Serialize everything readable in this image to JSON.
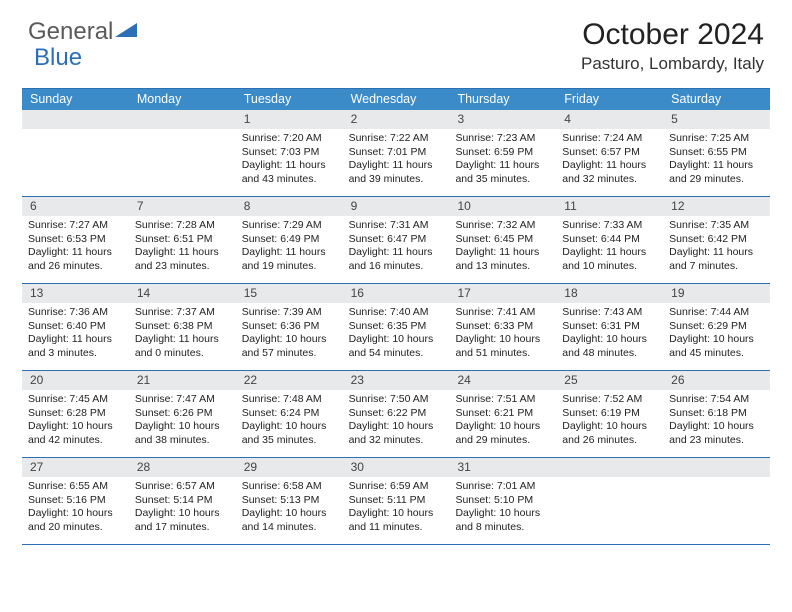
{
  "logo": {
    "text1": "General",
    "text2": "Blue"
  },
  "title": "October 2024",
  "location": "Pasturo, Lombardy, Italy",
  "colors": {
    "header_bg": "#3b8bc9",
    "border": "#2d6fb5",
    "daynum_bg": "#e8e9ea",
    "logo_gray": "#5a5a5a",
    "logo_blue": "#2d6fb5"
  },
  "dow": [
    "Sunday",
    "Monday",
    "Tuesday",
    "Wednesday",
    "Thursday",
    "Friday",
    "Saturday"
  ],
  "weeks": [
    [
      null,
      null,
      {
        "n": "1",
        "sr": "7:20 AM",
        "ss": "7:03 PM",
        "dl": "11 hours and 43 minutes."
      },
      {
        "n": "2",
        "sr": "7:22 AM",
        "ss": "7:01 PM",
        "dl": "11 hours and 39 minutes."
      },
      {
        "n": "3",
        "sr": "7:23 AM",
        "ss": "6:59 PM",
        "dl": "11 hours and 35 minutes."
      },
      {
        "n": "4",
        "sr": "7:24 AM",
        "ss": "6:57 PM",
        "dl": "11 hours and 32 minutes."
      },
      {
        "n": "5",
        "sr": "7:25 AM",
        "ss": "6:55 PM",
        "dl": "11 hours and 29 minutes."
      }
    ],
    [
      {
        "n": "6",
        "sr": "7:27 AM",
        "ss": "6:53 PM",
        "dl": "11 hours and 26 minutes."
      },
      {
        "n": "7",
        "sr": "7:28 AM",
        "ss": "6:51 PM",
        "dl": "11 hours and 23 minutes."
      },
      {
        "n": "8",
        "sr": "7:29 AM",
        "ss": "6:49 PM",
        "dl": "11 hours and 19 minutes."
      },
      {
        "n": "9",
        "sr": "7:31 AM",
        "ss": "6:47 PM",
        "dl": "11 hours and 16 minutes."
      },
      {
        "n": "10",
        "sr": "7:32 AM",
        "ss": "6:45 PM",
        "dl": "11 hours and 13 minutes."
      },
      {
        "n": "11",
        "sr": "7:33 AM",
        "ss": "6:44 PM",
        "dl": "11 hours and 10 minutes."
      },
      {
        "n": "12",
        "sr": "7:35 AM",
        "ss": "6:42 PM",
        "dl": "11 hours and 7 minutes."
      }
    ],
    [
      {
        "n": "13",
        "sr": "7:36 AM",
        "ss": "6:40 PM",
        "dl": "11 hours and 3 minutes."
      },
      {
        "n": "14",
        "sr": "7:37 AM",
        "ss": "6:38 PM",
        "dl": "11 hours and 0 minutes."
      },
      {
        "n": "15",
        "sr": "7:39 AM",
        "ss": "6:36 PM",
        "dl": "10 hours and 57 minutes."
      },
      {
        "n": "16",
        "sr": "7:40 AM",
        "ss": "6:35 PM",
        "dl": "10 hours and 54 minutes."
      },
      {
        "n": "17",
        "sr": "7:41 AM",
        "ss": "6:33 PM",
        "dl": "10 hours and 51 minutes."
      },
      {
        "n": "18",
        "sr": "7:43 AM",
        "ss": "6:31 PM",
        "dl": "10 hours and 48 minutes."
      },
      {
        "n": "19",
        "sr": "7:44 AM",
        "ss": "6:29 PM",
        "dl": "10 hours and 45 minutes."
      }
    ],
    [
      {
        "n": "20",
        "sr": "7:45 AM",
        "ss": "6:28 PM",
        "dl": "10 hours and 42 minutes."
      },
      {
        "n": "21",
        "sr": "7:47 AM",
        "ss": "6:26 PM",
        "dl": "10 hours and 38 minutes."
      },
      {
        "n": "22",
        "sr": "7:48 AM",
        "ss": "6:24 PM",
        "dl": "10 hours and 35 minutes."
      },
      {
        "n": "23",
        "sr": "7:50 AM",
        "ss": "6:22 PM",
        "dl": "10 hours and 32 minutes."
      },
      {
        "n": "24",
        "sr": "7:51 AM",
        "ss": "6:21 PM",
        "dl": "10 hours and 29 minutes."
      },
      {
        "n": "25",
        "sr": "7:52 AM",
        "ss": "6:19 PM",
        "dl": "10 hours and 26 minutes."
      },
      {
        "n": "26",
        "sr": "7:54 AM",
        "ss": "6:18 PM",
        "dl": "10 hours and 23 minutes."
      }
    ],
    [
      {
        "n": "27",
        "sr": "6:55 AM",
        "ss": "5:16 PM",
        "dl": "10 hours and 20 minutes."
      },
      {
        "n": "28",
        "sr": "6:57 AM",
        "ss": "5:14 PM",
        "dl": "10 hours and 17 minutes."
      },
      {
        "n": "29",
        "sr": "6:58 AM",
        "ss": "5:13 PM",
        "dl": "10 hours and 14 minutes."
      },
      {
        "n": "30",
        "sr": "6:59 AM",
        "ss": "5:11 PM",
        "dl": "10 hours and 11 minutes."
      },
      {
        "n": "31",
        "sr": "7:01 AM",
        "ss": "5:10 PM",
        "dl": "10 hours and 8 minutes."
      },
      null,
      null
    ]
  ],
  "labels": {
    "sunrise": "Sunrise: ",
    "sunset": "Sunset: ",
    "daylight": "Daylight: "
  }
}
